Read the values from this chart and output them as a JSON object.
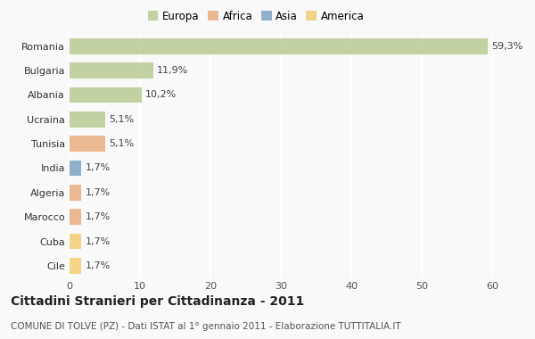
{
  "categories": [
    "Romania",
    "Bulgaria",
    "Albania",
    "Ucraina",
    "Tunisia",
    "India",
    "Algeria",
    "Marocco",
    "Cuba",
    "Cile"
  ],
  "values": [
    59.3,
    11.9,
    10.2,
    5.1,
    5.1,
    1.7,
    1.7,
    1.7,
    1.7,
    1.7
  ],
  "labels": [
    "59,3%",
    "11,9%",
    "10,2%",
    "5,1%",
    "5,1%",
    "1,7%",
    "1,7%",
    "1,7%",
    "1,7%",
    "1,7%"
  ],
  "colors": [
    "#b5c98e",
    "#b5c98e",
    "#b5c98e",
    "#b5c98e",
    "#e8aa7e",
    "#7a9ec0",
    "#e8aa7e",
    "#e8aa7e",
    "#f0cc6e",
    "#f0cc6e"
  ],
  "legend": [
    {
      "label": "Europa",
      "color": "#b5c98e"
    },
    {
      "label": "Africa",
      "color": "#e8aa7e"
    },
    {
      "label": "Asia",
      "color": "#7a9ec0"
    },
    {
      "label": "America",
      "color": "#f0cc6e"
    }
  ],
  "xlim": [
    0,
    63
  ],
  "xticks": [
    0,
    10,
    20,
    30,
    40,
    50,
    60
  ],
  "title": "Cittadini Stranieri per Cittadinanza - 2011",
  "subtitle": "COMUNE DI TOLVE (PZ) - Dati ISTAT al 1° gennaio 2011 - Elaborazione TUTTITALIA.IT",
  "background_color": "#f9f9f9",
  "grid_color": "#ffffff",
  "bar_height": 0.65,
  "title_fontsize": 10,
  "subtitle_fontsize": 7.5,
  "label_fontsize": 8,
  "tick_fontsize": 8,
  "legend_fontsize": 8.5
}
